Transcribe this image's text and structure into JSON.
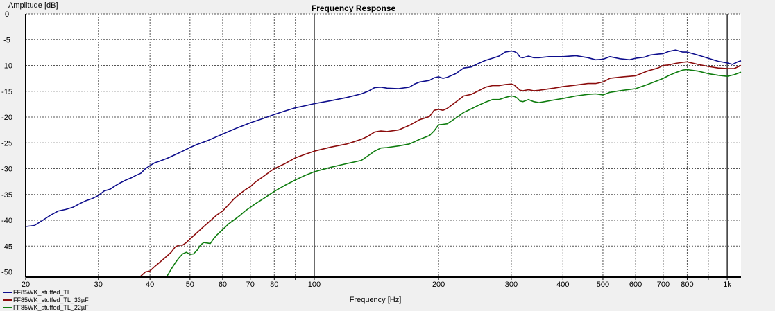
{
  "chart_data": {
    "type": "line",
    "title": "Frequency Response",
    "xlabel": "Frequency [Hz]",
    "ylabel": "Amplitude [dB]",
    "x_scale": "log",
    "xlim": [
      20,
      1080
    ],
    "ylim": [
      -51,
      0
    ],
    "grid": true,
    "legend_position": "bottom-left",
    "x_ticks": [
      {
        "value": 20,
        "label": "20",
        "major": true
      },
      {
        "value": 30,
        "label": "30",
        "major": false
      },
      {
        "value": 40,
        "label": "40",
        "major": false
      },
      {
        "value": 50,
        "label": "50",
        "major": false
      },
      {
        "value": 60,
        "label": "60",
        "major": false
      },
      {
        "value": 70,
        "label": "70",
        "major": false
      },
      {
        "value": 80,
        "label": "80",
        "major": false
      },
      {
        "value": 90,
        "label": "",
        "major": false
      },
      {
        "value": 100,
        "label": "100",
        "major": true
      },
      {
        "value": 200,
        "label": "200",
        "major": false
      },
      {
        "value": 300,
        "label": "300",
        "major": false
      },
      {
        "value": 400,
        "label": "400",
        "major": false
      },
      {
        "value": 500,
        "label": "500",
        "major": false
      },
      {
        "value": 600,
        "label": "600",
        "major": false
      },
      {
        "value": 700,
        "label": "700",
        "major": false
      },
      {
        "value": 800,
        "label": "800",
        "major": false
      },
      {
        "value": 900,
        "label": "",
        "major": false
      },
      {
        "value": 1000,
        "label": "1k",
        "major": true
      }
    ],
    "y_ticks": [
      {
        "value": 0,
        "label": "0"
      },
      {
        "value": -5,
        "label": "-5"
      },
      {
        "value": -10,
        "label": "-10"
      },
      {
        "value": -15,
        "label": "-15"
      },
      {
        "value": -20,
        "label": "-20"
      },
      {
        "value": -25,
        "label": "-25"
      },
      {
        "value": -30,
        "label": "-30"
      },
      {
        "value": -35,
        "label": "-35"
      },
      {
        "value": -40,
        "label": "-40"
      },
      {
        "value": -45,
        "label": "-45"
      },
      {
        "value": -50,
        "label": "-50"
      }
    ],
    "series": [
      {
        "name": "FF85WK_stuffed_TL",
        "color": "#0d0d8c",
        "points": [
          [
            20,
            -41.2
          ],
          [
            21,
            -41.0
          ],
          [
            22,
            -40.0
          ],
          [
            23,
            -39.0
          ],
          [
            24,
            -38.2
          ],
          [
            25,
            -37.9
          ],
          [
            26,
            -37.5
          ],
          [
            27,
            -36.8
          ],
          [
            28,
            -36.2
          ],
          [
            29,
            -35.8
          ],
          [
            30,
            -35.2
          ],
          [
            31,
            -34.3
          ],
          [
            32,
            -34.0
          ],
          [
            33,
            -33.3
          ],
          [
            34,
            -32.7
          ],
          [
            35,
            -32.2
          ],
          [
            36,
            -31.8
          ],
          [
            37,
            -31.3
          ],
          [
            38,
            -30.9
          ],
          [
            39,
            -30.0
          ],
          [
            40,
            -29.4
          ],
          [
            41,
            -28.9
          ],
          [
            42,
            -28.6
          ],
          [
            44,
            -28.0
          ],
          [
            46,
            -27.3
          ],
          [
            48,
            -26.6
          ],
          [
            50,
            -25.9
          ],
          [
            52,
            -25.3
          ],
          [
            55,
            -24.6
          ],
          [
            58,
            -23.8
          ],
          [
            60,
            -23.3
          ],
          [
            62,
            -22.8
          ],
          [
            65,
            -22.1
          ],
          [
            68,
            -21.5
          ],
          [
            70,
            -21.1
          ],
          [
            75,
            -20.3
          ],
          [
            80,
            -19.5
          ],
          [
            85,
            -18.8
          ],
          [
            90,
            -18.2
          ],
          [
            95,
            -17.8
          ],
          [
            100,
            -17.4
          ],
          [
            110,
            -16.8
          ],
          [
            120,
            -16.2
          ],
          [
            130,
            -15.5
          ],
          [
            135,
            -15.0
          ],
          [
            140,
            -14.3
          ],
          [
            145,
            -14.2
          ],
          [
            150,
            -14.4
          ],
          [
            160,
            -14.5
          ],
          [
            170,
            -14.2
          ],
          [
            175,
            -13.6
          ],
          [
            180,
            -13.2
          ],
          [
            190,
            -12.9
          ],
          [
            195,
            -12.4
          ],
          [
            200,
            -12.2
          ],
          [
            205,
            -12.5
          ],
          [
            210,
            -12.3
          ],
          [
            220,
            -11.6
          ],
          [
            230,
            -10.5
          ],
          [
            240,
            -10.3
          ],
          [
            250,
            -9.6
          ],
          [
            260,
            -9.0
          ],
          [
            270,
            -8.6
          ],
          [
            280,
            -8.2
          ],
          [
            290,
            -7.4
          ],
          [
            300,
            -7.2
          ],
          [
            305,
            -7.3
          ],
          [
            310,
            -7.6
          ],
          [
            315,
            -8.4
          ],
          [
            320,
            -8.5
          ],
          [
            330,
            -8.2
          ],
          [
            340,
            -8.5
          ],
          [
            350,
            -8.5
          ],
          [
            370,
            -8.3
          ],
          [
            400,
            -8.3
          ],
          [
            430,
            -8.1
          ],
          [
            460,
            -8.5
          ],
          [
            480,
            -8.9
          ],
          [
            500,
            -8.8
          ],
          [
            520,
            -8.3
          ],
          [
            550,
            -8.7
          ],
          [
            580,
            -8.9
          ],
          [
            600,
            -8.6
          ],
          [
            630,
            -8.4
          ],
          [
            650,
            -8.0
          ],
          [
            680,
            -7.8
          ],
          [
            700,
            -7.7
          ],
          [
            720,
            -7.3
          ],
          [
            750,
            -7.0
          ],
          [
            780,
            -7.4
          ],
          [
            800,
            -7.4
          ],
          [
            850,
            -8.0
          ],
          [
            900,
            -8.6
          ],
          [
            950,
            -9.2
          ],
          [
            1000,
            -9.5
          ],
          [
            1030,
            -9.8
          ],
          [
            1060,
            -9.3
          ],
          [
            1080,
            -9.1
          ]
        ]
      },
      {
        "name": "FF85WK_stuffed_TL_33µF",
        "color": "#8b0c0c",
        "points": [
          [
            38,
            -50.8
          ],
          [
            39,
            -50.0
          ],
          [
            40,
            -49.8
          ],
          [
            41,
            -49.0
          ],
          [
            42,
            -48.3
          ],
          [
            43,
            -47.6
          ],
          [
            44,
            -46.9
          ],
          [
            45,
            -46.2
          ],
          [
            46,
            -45.2
          ],
          [
            47,
            -44.8
          ],
          [
            48,
            -44.8
          ],
          [
            49,
            -44.3
          ],
          [
            50,
            -43.6
          ],
          [
            52,
            -42.4
          ],
          [
            54,
            -41.2
          ],
          [
            56,
            -40.1
          ],
          [
            58,
            -39.0
          ],
          [
            60,
            -38.2
          ],
          [
            62,
            -37.0
          ],
          [
            64,
            -35.8
          ],
          [
            66,
            -34.9
          ],
          [
            68,
            -34.1
          ],
          [
            70,
            -33.5
          ],
          [
            72,
            -32.6
          ],
          [
            75,
            -31.6
          ],
          [
            78,
            -30.6
          ],
          [
            80,
            -30.0
          ],
          [
            85,
            -29.0
          ],
          [
            90,
            -27.9
          ],
          [
            95,
            -27.2
          ],
          [
            100,
            -26.6
          ],
          [
            110,
            -25.8
          ],
          [
            120,
            -25.2
          ],
          [
            130,
            -24.3
          ],
          [
            135,
            -23.7
          ],
          [
            140,
            -22.9
          ],
          [
            145,
            -22.7
          ],
          [
            150,
            -22.8
          ],
          [
            160,
            -22.5
          ],
          [
            170,
            -21.6
          ],
          [
            180,
            -20.5
          ],
          [
            190,
            -19.9
          ],
          [
            195,
            -18.7
          ],
          [
            200,
            -18.5
          ],
          [
            205,
            -18.7
          ],
          [
            210,
            -18.3
          ],
          [
            220,
            -17.1
          ],
          [
            230,
            -15.9
          ],
          [
            240,
            -15.6
          ],
          [
            250,
            -14.9
          ],
          [
            260,
            -14.2
          ],
          [
            270,
            -13.9
          ],
          [
            280,
            -13.9
          ],
          [
            290,
            -13.7
          ],
          [
            300,
            -13.6
          ],
          [
            305,
            -13.8
          ],
          [
            310,
            -14.3
          ],
          [
            315,
            -14.8
          ],
          [
            320,
            -14.9
          ],
          [
            330,
            -14.7
          ],
          [
            340,
            -14.9
          ],
          [
            350,
            -14.8
          ],
          [
            380,
            -14.4
          ],
          [
            400,
            -14.1
          ],
          [
            430,
            -13.8
          ],
          [
            460,
            -13.5
          ],
          [
            480,
            -13.5
          ],
          [
            500,
            -13.2
          ],
          [
            520,
            -12.5
          ],
          [
            560,
            -12.2
          ],
          [
            600,
            -12.0
          ],
          [
            640,
            -11.1
          ],
          [
            680,
            -10.5
          ],
          [
            700,
            -10.0
          ],
          [
            720,
            -9.9
          ],
          [
            750,
            -9.6
          ],
          [
            780,
            -9.4
          ],
          [
            800,
            -9.3
          ],
          [
            850,
            -9.8
          ],
          [
            900,
            -10.2
          ],
          [
            950,
            -10.5
          ],
          [
            1000,
            -10.6
          ],
          [
            1040,
            -10.6
          ],
          [
            1080,
            -10.0
          ]
        ]
      },
      {
        "name": "FF85WK_stuffed_TL_22µF",
        "color": "#0e7c0e",
        "points": [
          [
            44,
            -50.8
          ],
          [
            45,
            -49.5
          ],
          [
            46,
            -48.3
          ],
          [
            47,
            -47.3
          ],
          [
            48,
            -46.5
          ],
          [
            49,
            -46.2
          ],
          [
            50,
            -46.6
          ],
          [
            51,
            -46.5
          ],
          [
            52,
            -45.8
          ],
          [
            53,
            -44.8
          ],
          [
            54,
            -44.3
          ],
          [
            55,
            -44.4
          ],
          [
            56,
            -44.5
          ],
          [
            57,
            -43.6
          ],
          [
            58,
            -42.9
          ],
          [
            60,
            -41.8
          ],
          [
            62,
            -40.7
          ],
          [
            64,
            -39.9
          ],
          [
            66,
            -39.1
          ],
          [
            68,
            -38.2
          ],
          [
            70,
            -37.5
          ],
          [
            72,
            -36.8
          ],
          [
            75,
            -35.9
          ],
          [
            78,
            -35.0
          ],
          [
            80,
            -34.4
          ],
          [
            85,
            -33.2
          ],
          [
            90,
            -32.2
          ],
          [
            95,
            -31.3
          ],
          [
            100,
            -30.6
          ],
          [
            110,
            -29.7
          ],
          [
            120,
            -29.0
          ],
          [
            130,
            -28.4
          ],
          [
            135,
            -27.5
          ],
          [
            140,
            -26.6
          ],
          [
            145,
            -26.0
          ],
          [
            150,
            -25.9
          ],
          [
            160,
            -25.6
          ],
          [
            170,
            -25.2
          ],
          [
            180,
            -24.3
          ],
          [
            190,
            -23.6
          ],
          [
            195,
            -22.7
          ],
          [
            200,
            -21.5
          ],
          [
            205,
            -21.4
          ],
          [
            210,
            -21.3
          ],
          [
            220,
            -20.2
          ],
          [
            230,
            -19.1
          ],
          [
            240,
            -18.4
          ],
          [
            250,
            -17.7
          ],
          [
            260,
            -17.1
          ],
          [
            270,
            -16.6
          ],
          [
            280,
            -16.6
          ],
          [
            290,
            -16.2
          ],
          [
            300,
            -15.9
          ],
          [
            305,
            -16.0
          ],
          [
            310,
            -16.3
          ],
          [
            315,
            -16.9
          ],
          [
            320,
            -17.0
          ],
          [
            330,
            -16.6
          ],
          [
            340,
            -17.0
          ],
          [
            350,
            -17.2
          ],
          [
            380,
            -16.7
          ],
          [
            400,
            -16.4
          ],
          [
            430,
            -15.9
          ],
          [
            460,
            -15.6
          ],
          [
            480,
            -15.5
          ],
          [
            500,
            -15.7
          ],
          [
            520,
            -15.2
          ],
          [
            560,
            -14.8
          ],
          [
            600,
            -14.5
          ],
          [
            640,
            -13.7
          ],
          [
            680,
            -12.9
          ],
          [
            700,
            -12.5
          ],
          [
            720,
            -12.0
          ],
          [
            750,
            -11.4
          ],
          [
            780,
            -10.9
          ],
          [
            800,
            -10.8
          ],
          [
            850,
            -11.1
          ],
          [
            900,
            -11.6
          ],
          [
            950,
            -11.9
          ],
          [
            1000,
            -12.1
          ],
          [
            1040,
            -11.8
          ],
          [
            1080,
            -11.3
          ]
        ]
      }
    ]
  }
}
